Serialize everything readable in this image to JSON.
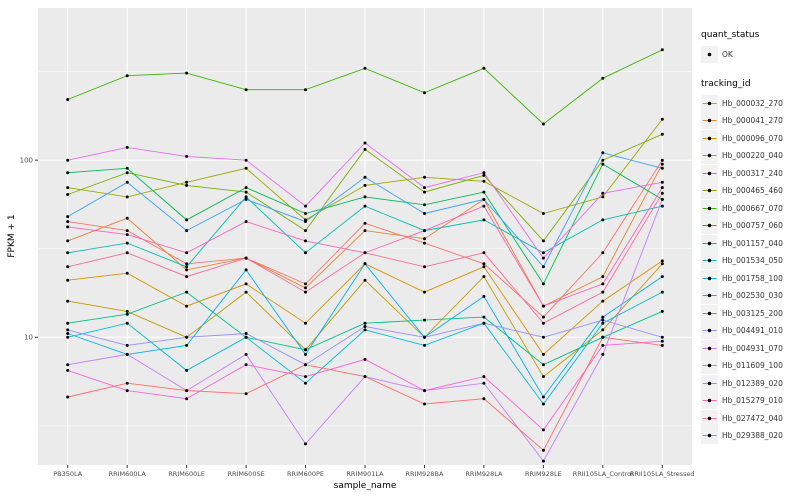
{
  "figure": {
    "y_axis_label": "FPKM + 1",
    "x_axis_label": "sample_name",
    "legend": {
      "quant_status_title": "quant_status",
      "quant_status_items": [
        {
          "label": "OK",
          "shape": "point"
        }
      ],
      "tracking_id_title": "tracking_id"
    }
  },
  "chart_data": {
    "type": "line",
    "title": "",
    "xlabel": "sample_name",
    "ylabel": "FPKM + 1",
    "y_scale": "log10",
    "ylim": [
      1.9,
      723
    ],
    "y_ticks": [
      10,
      100
    ],
    "y_minor_gridlines": [
      3.16,
      31.6,
      316
    ],
    "grid": true,
    "legend_position": "right",
    "panel_background": "#EBEBEB",
    "gridline_color": "#FFFFFF",
    "point_color": "#000000",
    "x": [
      "PB350LA",
      "RRIM600LA",
      "RRIM600LE",
      "RRIM600SE",
      "RRIM600PE",
      "RRIM901LA",
      "RRIM928BA",
      "RRIM928LA",
      "RRIM928LE",
      "RRII105LA_Control",
      "RRII105LA_Stressed"
    ],
    "series": [
      {
        "name": "Hb_000032_270",
        "color": "#F8766D",
        "values": [
          45,
          40,
          26,
          28,
          20,
          44,
          34,
          26,
          13,
          30,
          100
        ]
      },
      {
        "name": "Hb_000041_270",
        "color": "#EA8331",
        "values": [
          35,
          47,
          24,
          28,
          19,
          40,
          36,
          60,
          15,
          22,
          95
        ]
      },
      {
        "name": "Hb_000096_070",
        "color": "#D89000",
        "values": [
          21,
          23,
          15,
          20,
          12,
          26,
          18,
          25,
          8,
          16,
          27
        ]
      },
      {
        "name": "Hb_000220_040",
        "color": "#C09B00",
        "values": [
          16,
          14,
          10,
          18,
          8.5,
          21,
          10,
          22,
          6,
          11,
          26
        ]
      },
      {
        "name": "Hb_000317_240",
        "color": "#A3A500",
        "values": [
          70,
          62,
          75,
          90,
          46,
          72,
          80,
          76,
          50,
          62,
          170
        ]
      },
      {
        "name": "Hb_000465_460",
        "color": "#7CAE00",
        "values": [
          64,
          85,
          72,
          66,
          40,
          115,
          66,
          82,
          35,
          100,
          140
        ]
      },
      {
        "name": "Hb_000667_070",
        "color": "#39B600",
        "values": [
          220,
          300,
          310,
          250,
          250,
          330,
          240,
          330,
          160,
          290,
          420
        ]
      },
      {
        "name": "Hb_000757_060",
        "color": "#00BB4E",
        "values": [
          85,
          90,
          46,
          70,
          50,
          62,
          56,
          66,
          20,
          95,
          60
        ]
      },
      {
        "name": "Hb_001157_040",
        "color": "#00C087",
        "values": [
          12,
          13.5,
          18,
          10,
          8.5,
          12,
          12.5,
          13,
          7,
          10,
          14
        ]
      },
      {
        "name": "Hb_001534_050",
        "color": "#00C0B2",
        "values": [
          30,
          34,
          25,
          62,
          30,
          55,
          40,
          46,
          30,
          46,
          55
        ]
      },
      {
        "name": "Hb_001758_100",
        "color": "#00BCD8",
        "values": [
          10,
          12,
          6.5,
          10,
          5.5,
          11,
          9,
          12,
          4.2,
          12,
          18
        ]
      },
      {
        "name": "Hb_002530_030",
        "color": "#00B0F6",
        "values": [
          10.5,
          8,
          9,
          24,
          8,
          26,
          10,
          17,
          4.6,
          13,
          22
        ]
      },
      {
        "name": "Hb_003125_200",
        "color": "#35A2FF",
        "values": [
          48,
          75,
          40,
          60,
          45,
          80,
          50,
          60,
          25,
          110,
          90
        ]
      },
      {
        "name": "Hb_004491_010",
        "color": "#9590FF",
        "values": [
          11,
          9,
          10,
          10.5,
          7,
          11.5,
          10,
          12,
          10,
          12.5,
          10
        ]
      },
      {
        "name": "Hb_004931_070",
        "color": "#C77CFF",
        "values": [
          7,
          8,
          5,
          8,
          2.5,
          6,
          5,
          5.5,
          2,
          8,
          60
        ]
      },
      {
        "name": "Hb_011609_100",
        "color": "#E76BF3",
        "values": [
          100,
          118,
          105,
          100,
          55,
          125,
          70,
          85,
          28,
          65,
          75
        ]
      },
      {
        "name": "Hb_012389_020",
        "color": "#FA62DB",
        "values": [
          6.5,
          5,
          4.5,
          7,
          6,
          7.5,
          5,
          6,
          3,
          9,
          9.5
        ]
      },
      {
        "name": "Hb_015279_010",
        "color": "#FF62BC",
        "values": [
          42,
          38,
          30,
          45,
          35,
          30,
          40,
          55,
          15,
          20,
          70
        ]
      },
      {
        "name": "Hb_027472_040",
        "color": "#FF6A98",
        "values": [
          25,
          30,
          22,
          28,
          18,
          30,
          25,
          30,
          12,
          18,
          65
        ]
      },
      {
        "name": "Hb_029388_020",
        "color": "#FF6C67",
        "values": [
          4.6,
          5.5,
          5,
          4.8,
          7,
          6,
          4.2,
          4.5,
          2.3,
          10,
          9
        ]
      }
    ]
  }
}
